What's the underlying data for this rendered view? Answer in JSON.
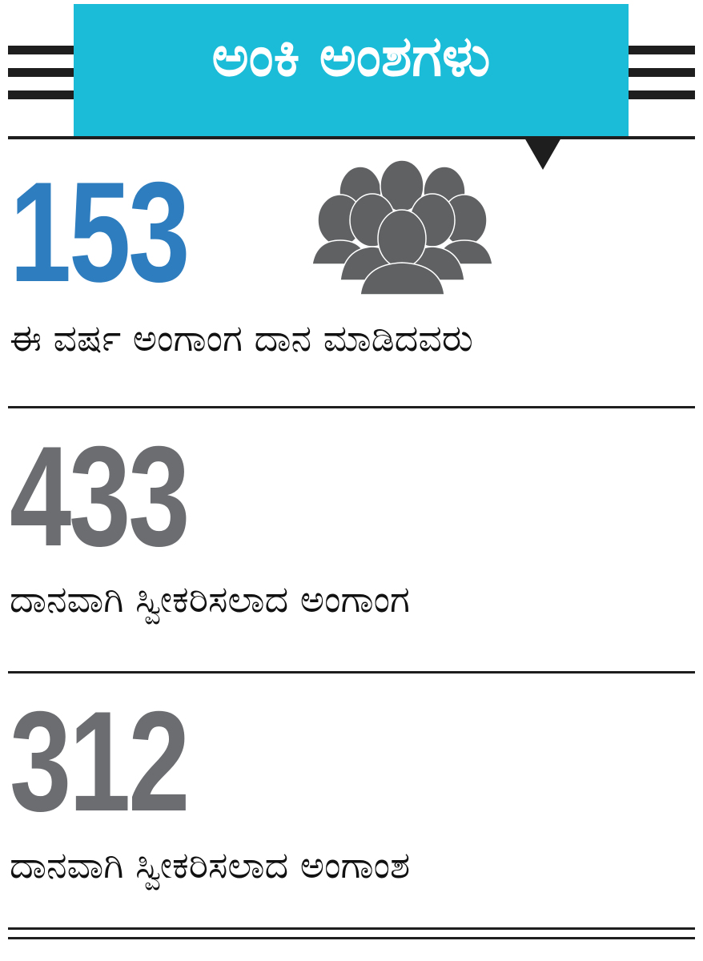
{
  "header": {
    "title": "ಅಂಕಿ ಅಂಶಗಳು"
  },
  "colors": {
    "header_bg": "#1bbcd8",
    "highlight_number": "#2e7dbf",
    "number": "#6b6d70",
    "icon": "#5f6163",
    "rules": "#1e1e1e"
  },
  "icon": "people-group-icon",
  "stats": [
    {
      "value": "153",
      "label": "ಈ ವರ್ಷ ಅಂಗಾಂಗ ದಾನ ಮಾಡಿದವರು"
    },
    {
      "value": "433",
      "label": "ದಾನವಾಗಿ ಸ್ವೀಕರಿಸಲಾದ ಅಂಗಾಂಗ"
    },
    {
      "value": "312",
      "label": "ದಾನವಾಗಿ ಸ್ವೀಕರಿಸಲಾದ ಅಂಗಾಂಶ"
    }
  ]
}
